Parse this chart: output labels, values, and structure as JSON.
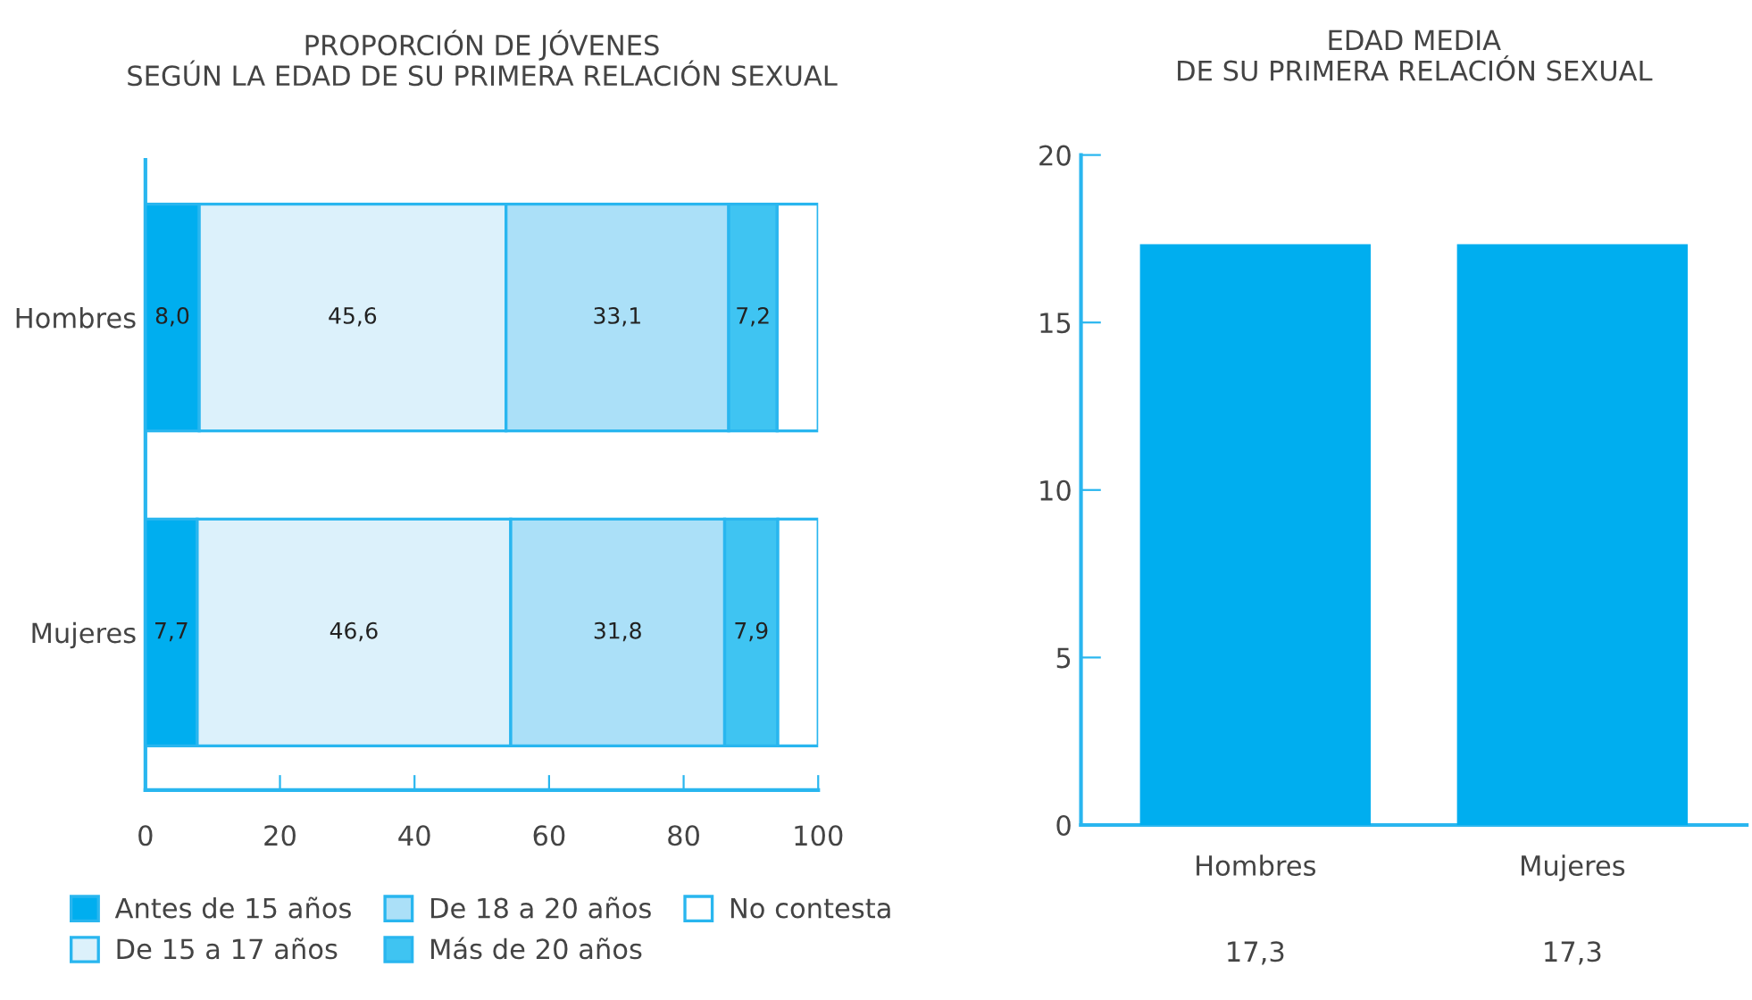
{
  "chart_data": [
    {
      "type": "bar",
      "title": "PROPORCIÓN DE JÓVENES\nSEGÚN LA EDAD DE SU PRIMERA RELACIÓN SEXUAL",
      "orientation": "horizontal",
      "stacked": true,
      "categories": [
        "Hombres",
        "Mujeres"
      ],
      "xlim": [
        0,
        100
      ],
      "xticks": [
        0,
        20,
        40,
        60,
        80,
        100
      ],
      "legend": "bottom",
      "series": [
        {
          "name": "Antes de 15 años",
          "color": "#00aeef",
          "values": [
            8.0,
            7.7
          ],
          "value_labels": [
            "8,0",
            "7,7"
          ]
        },
        {
          "name": "De 15 a 17 años",
          "color": "#dcf1fb",
          "values": [
            45.6,
            46.6
          ],
          "value_labels": [
            "45,6",
            "46,6"
          ]
        },
        {
          "name": "De 18 a 20 años",
          "color": "#abe0f8",
          "values": [
            33.1,
            31.8
          ],
          "value_labels": [
            "33,1",
            "31,8"
          ]
        },
        {
          "name": "Más de 20 años",
          "color": "#3fc4f2",
          "values": [
            7.2,
            7.9
          ],
          "value_labels": [
            "7,2",
            "7,9"
          ]
        },
        {
          "name": "No contesta",
          "color": "#ffffff",
          "values": [
            6.1,
            6.0
          ],
          "value_labels": [
            null,
            null
          ]
        }
      ]
    },
    {
      "type": "bar",
      "title": "EDAD MEDIA\nDE SU PRIMERA RELACIÓN SEXUAL",
      "categories": [
        "Hombres",
        "Mujeres"
      ],
      "ylim": [
        0,
        20
      ],
      "yticks": [
        0,
        5,
        10,
        15,
        20
      ],
      "series": [
        {
          "color": "#00aeef",
          "values": [
            17.3,
            17.3
          ],
          "value_labels": [
            "17,3",
            "17,3"
          ]
        }
      ]
    }
  ]
}
